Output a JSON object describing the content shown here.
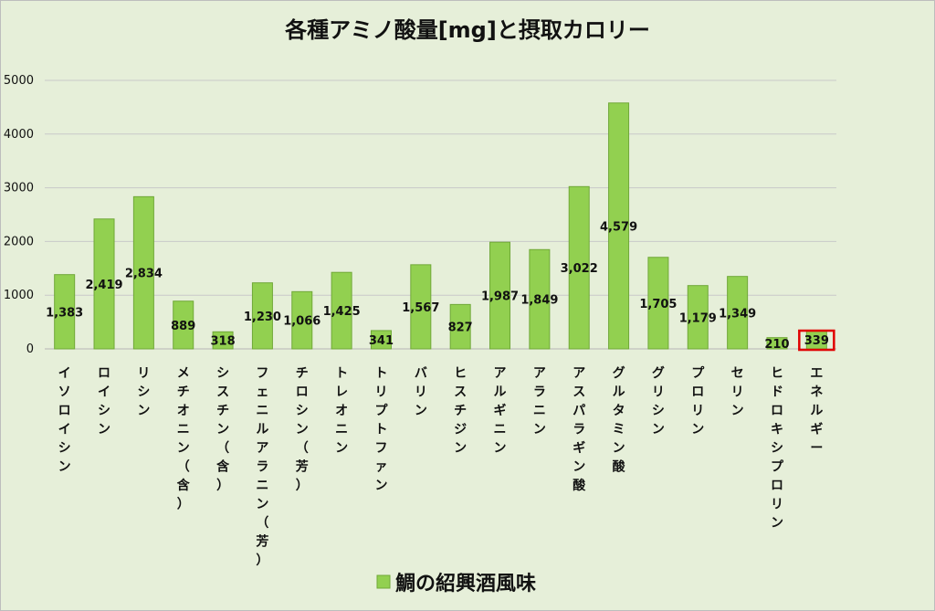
{
  "chart_data": {
    "type": "bar",
    "title": "各種アミノ酸量[mg]と摂取カロリー",
    "categories": [
      "イソロイシン",
      "ロイシン",
      "リシン",
      "メチオニン（含）",
      "シスチン（含）",
      "フェニルアラニン（芳）",
      "チロシン（芳）",
      "トレオニン",
      "トリプトファン",
      "バリン",
      "ヒスチジン",
      "アルギニン",
      "アラニン",
      "アスパラギン酸",
      "グルタミン酸",
      "グリシン",
      "プロリン",
      "セリン",
      "ヒドロキシプロリン",
      "エネルギー"
    ],
    "series": [
      {
        "name": "鯛の紹興酒風味",
        "values": [
          1383,
          2419,
          2834,
          889,
          318,
          1230,
          1066,
          1425,
          341,
          1567,
          827,
          1987,
          1849,
          3022,
          4579,
          1705,
          1179,
          1349,
          210,
          339
        ],
        "labels": [
          "1,383",
          "2,419",
          "2,834",
          "889",
          "318",
          "1,230",
          "1,066",
          "1,425",
          "341",
          "1,567",
          "827",
          "1,987",
          "1,849",
          "3,022",
          "4,579",
          "1,705",
          "1,179",
          "1,349",
          "210",
          "339"
        ]
      }
    ],
    "yticks": [
      "0",
      "1000",
      "2000",
      "3000",
      "4000",
      "5000"
    ],
    "ylim": [
      0,
      5000
    ],
    "grid": true,
    "legend_position": "bottom",
    "highlighted_category": "エネルギー",
    "bar_color": "#92d050",
    "bar_edge_color": "#70a838",
    "highlight_color": "#e00000"
  }
}
